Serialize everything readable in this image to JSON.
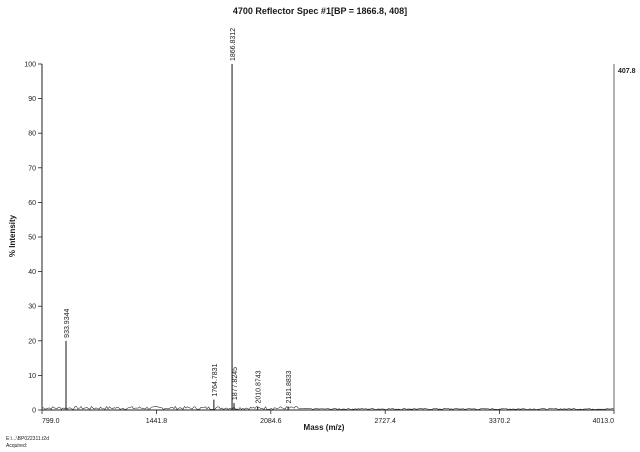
{
  "chart_data": {
    "type": "line",
    "title": "4700 Reflector Spec #1[BP = 1866.8, 408]",
    "xlabel": "Mass (m/z)",
    "ylabel": "% Intensity",
    "xlim": [
      799.0,
      4013.0
    ],
    "ylim": [
      0,
      100
    ],
    "x_ticks": [
      "799.0",
      "1441.8",
      "2084.6",
      "2727.4",
      "3370.2",
      "4013.0"
    ],
    "y_ticks": [
      "0",
      "10",
      "20",
      "30",
      "40",
      "50",
      "60",
      "70",
      "80",
      "90",
      "100"
    ],
    "max_intensity_label": "407.8",
    "grid": false,
    "peaks": [
      {
        "x": 933.9344,
        "y": 20,
        "label": "933.9344"
      },
      {
        "x": 1764.7831,
        "y": 3,
        "label": "1764.7831"
      },
      {
        "x": 1866.8312,
        "y": 100,
        "label": "1866.8312"
      },
      {
        "x": 1877.8245,
        "y": 2,
        "label": "1877.8245"
      },
      {
        "x": 2010.8743,
        "y": 1,
        "label": "2010.8743"
      },
      {
        "x": 2181.8833,
        "y": 1,
        "label": "2181.8833"
      }
    ]
  },
  "footer": {
    "line1": "E:\\...\\BP022311.t2d",
    "line2": "Acquired:"
  }
}
